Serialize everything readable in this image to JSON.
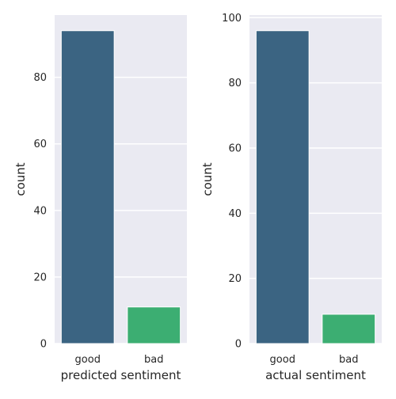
{
  "chart_data": [
    {
      "type": "bar",
      "categories": [
        "good",
        "bad"
      ],
      "values": [
        94,
        11
      ],
      "xlabel": "predicted sentiment",
      "ylabel": "count",
      "ylim": [
        0,
        98.7
      ],
      "yticks": [
        0,
        20,
        40,
        60,
        80
      ],
      "grid": true,
      "colors": [
        "#3b6482",
        "#3cae72"
      ],
      "background": "#eaeaf2"
    },
    {
      "type": "bar",
      "categories": [
        "good",
        "bad"
      ],
      "values": [
        96,
        9
      ],
      "xlabel": "actual sentiment",
      "ylabel": "count",
      "ylim": [
        0,
        100.8
      ],
      "yticks": [
        0,
        20,
        40,
        60,
        80,
        100
      ],
      "grid": true,
      "colors": [
        "#3b6482",
        "#3cae72"
      ],
      "background": "#eaeaf2"
    }
  ]
}
